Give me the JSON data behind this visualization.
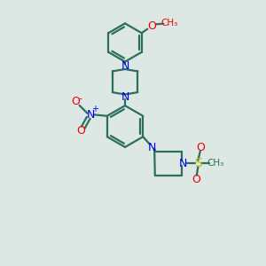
{
  "bg_color": "#dde8e4",
  "bond_color": "#2d6e5e",
  "N_color": "#0000ee",
  "O_color": "#ee0000",
  "S_color": "#bbbb00",
  "lw": 1.6,
  "figsize": [
    3.0,
    3.0
  ],
  "dpi": 100,
  "xlim": [
    0,
    10
  ],
  "ylim": [
    0,
    10
  ]
}
